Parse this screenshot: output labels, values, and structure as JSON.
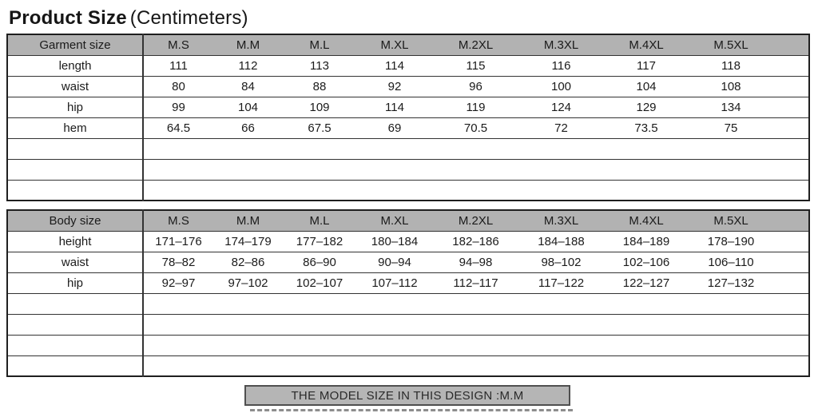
{
  "title": {
    "main": "Product Size",
    "unit": "(Centimeters)"
  },
  "sizes": [
    "M.S",
    "M.M",
    "M.L",
    "M.XL",
    "M.2XL",
    "M.3XL",
    "M.4XL",
    "M.5XL"
  ],
  "garment_table": {
    "header_label": "Garment size",
    "rows": [
      {
        "label": "length",
        "values": [
          "111",
          "112",
          "113",
          "114",
          "115",
          "116",
          "117",
          "118"
        ]
      },
      {
        "label": "waist",
        "values": [
          "80",
          "84",
          "88",
          "92",
          "96",
          "100",
          "104",
          "108"
        ]
      },
      {
        "label": "hip",
        "values": [
          "99",
          "104",
          "109",
          "114",
          "119",
          "124",
          "129",
          "134"
        ]
      },
      {
        "label": "hem",
        "values": [
          "64.5",
          "66",
          "67.5",
          "69",
          "70.5",
          "72",
          "73.5",
          "75"
        ]
      },
      {
        "label": "",
        "values": [
          "",
          "",
          "",
          "",
          "",
          "",
          "",
          ""
        ]
      },
      {
        "label": "",
        "values": [
          "",
          "",
          "",
          "",
          "",
          "",
          "",
          ""
        ]
      },
      {
        "label": "",
        "values": [
          "",
          "",
          "",
          "",
          "",
          "",
          "",
          ""
        ]
      }
    ]
  },
  "body_table": {
    "header_label": "Body size",
    "rows": [
      {
        "label": "height",
        "values": [
          "171–176",
          "174–179",
          "177–182",
          "180–184",
          "182–186",
          "184–188",
          "184–189",
          "178–190"
        ]
      },
      {
        "label": "waist",
        "values": [
          "78–82",
          "82–86",
          "86–90",
          "90–94",
          "94–98",
          "98–102",
          "102–106",
          "106–110"
        ]
      },
      {
        "label": "hip",
        "values": [
          "92–97",
          "97–102",
          "102–107",
          "107–112",
          "112–117",
          "117–122",
          "122–127",
          "127–132"
        ]
      },
      {
        "label": "",
        "values": [
          "",
          "",
          "",
          "",
          "",
          "",
          "",
          ""
        ]
      },
      {
        "label": "",
        "values": [
          "",
          "",
          "",
          "",
          "",
          "",
          "",
          ""
        ]
      },
      {
        "label": "",
        "values": [
          "",
          "",
          "",
          "",
          "",
          "",
          "",
          ""
        ]
      },
      {
        "label": "",
        "values": [
          "",
          "",
          "",
          "",
          "",
          "",
          "",
          ""
        ]
      }
    ]
  },
  "footer": {
    "model_size_note": "THE MODEL SIZE IN THIS DESIGN :M.M"
  },
  "colors": {
    "header_bg": "#b2b2b2",
    "note_bg": "#b5b5b5",
    "border": "#1f1f1f",
    "text": "#1b1b1b"
  }
}
